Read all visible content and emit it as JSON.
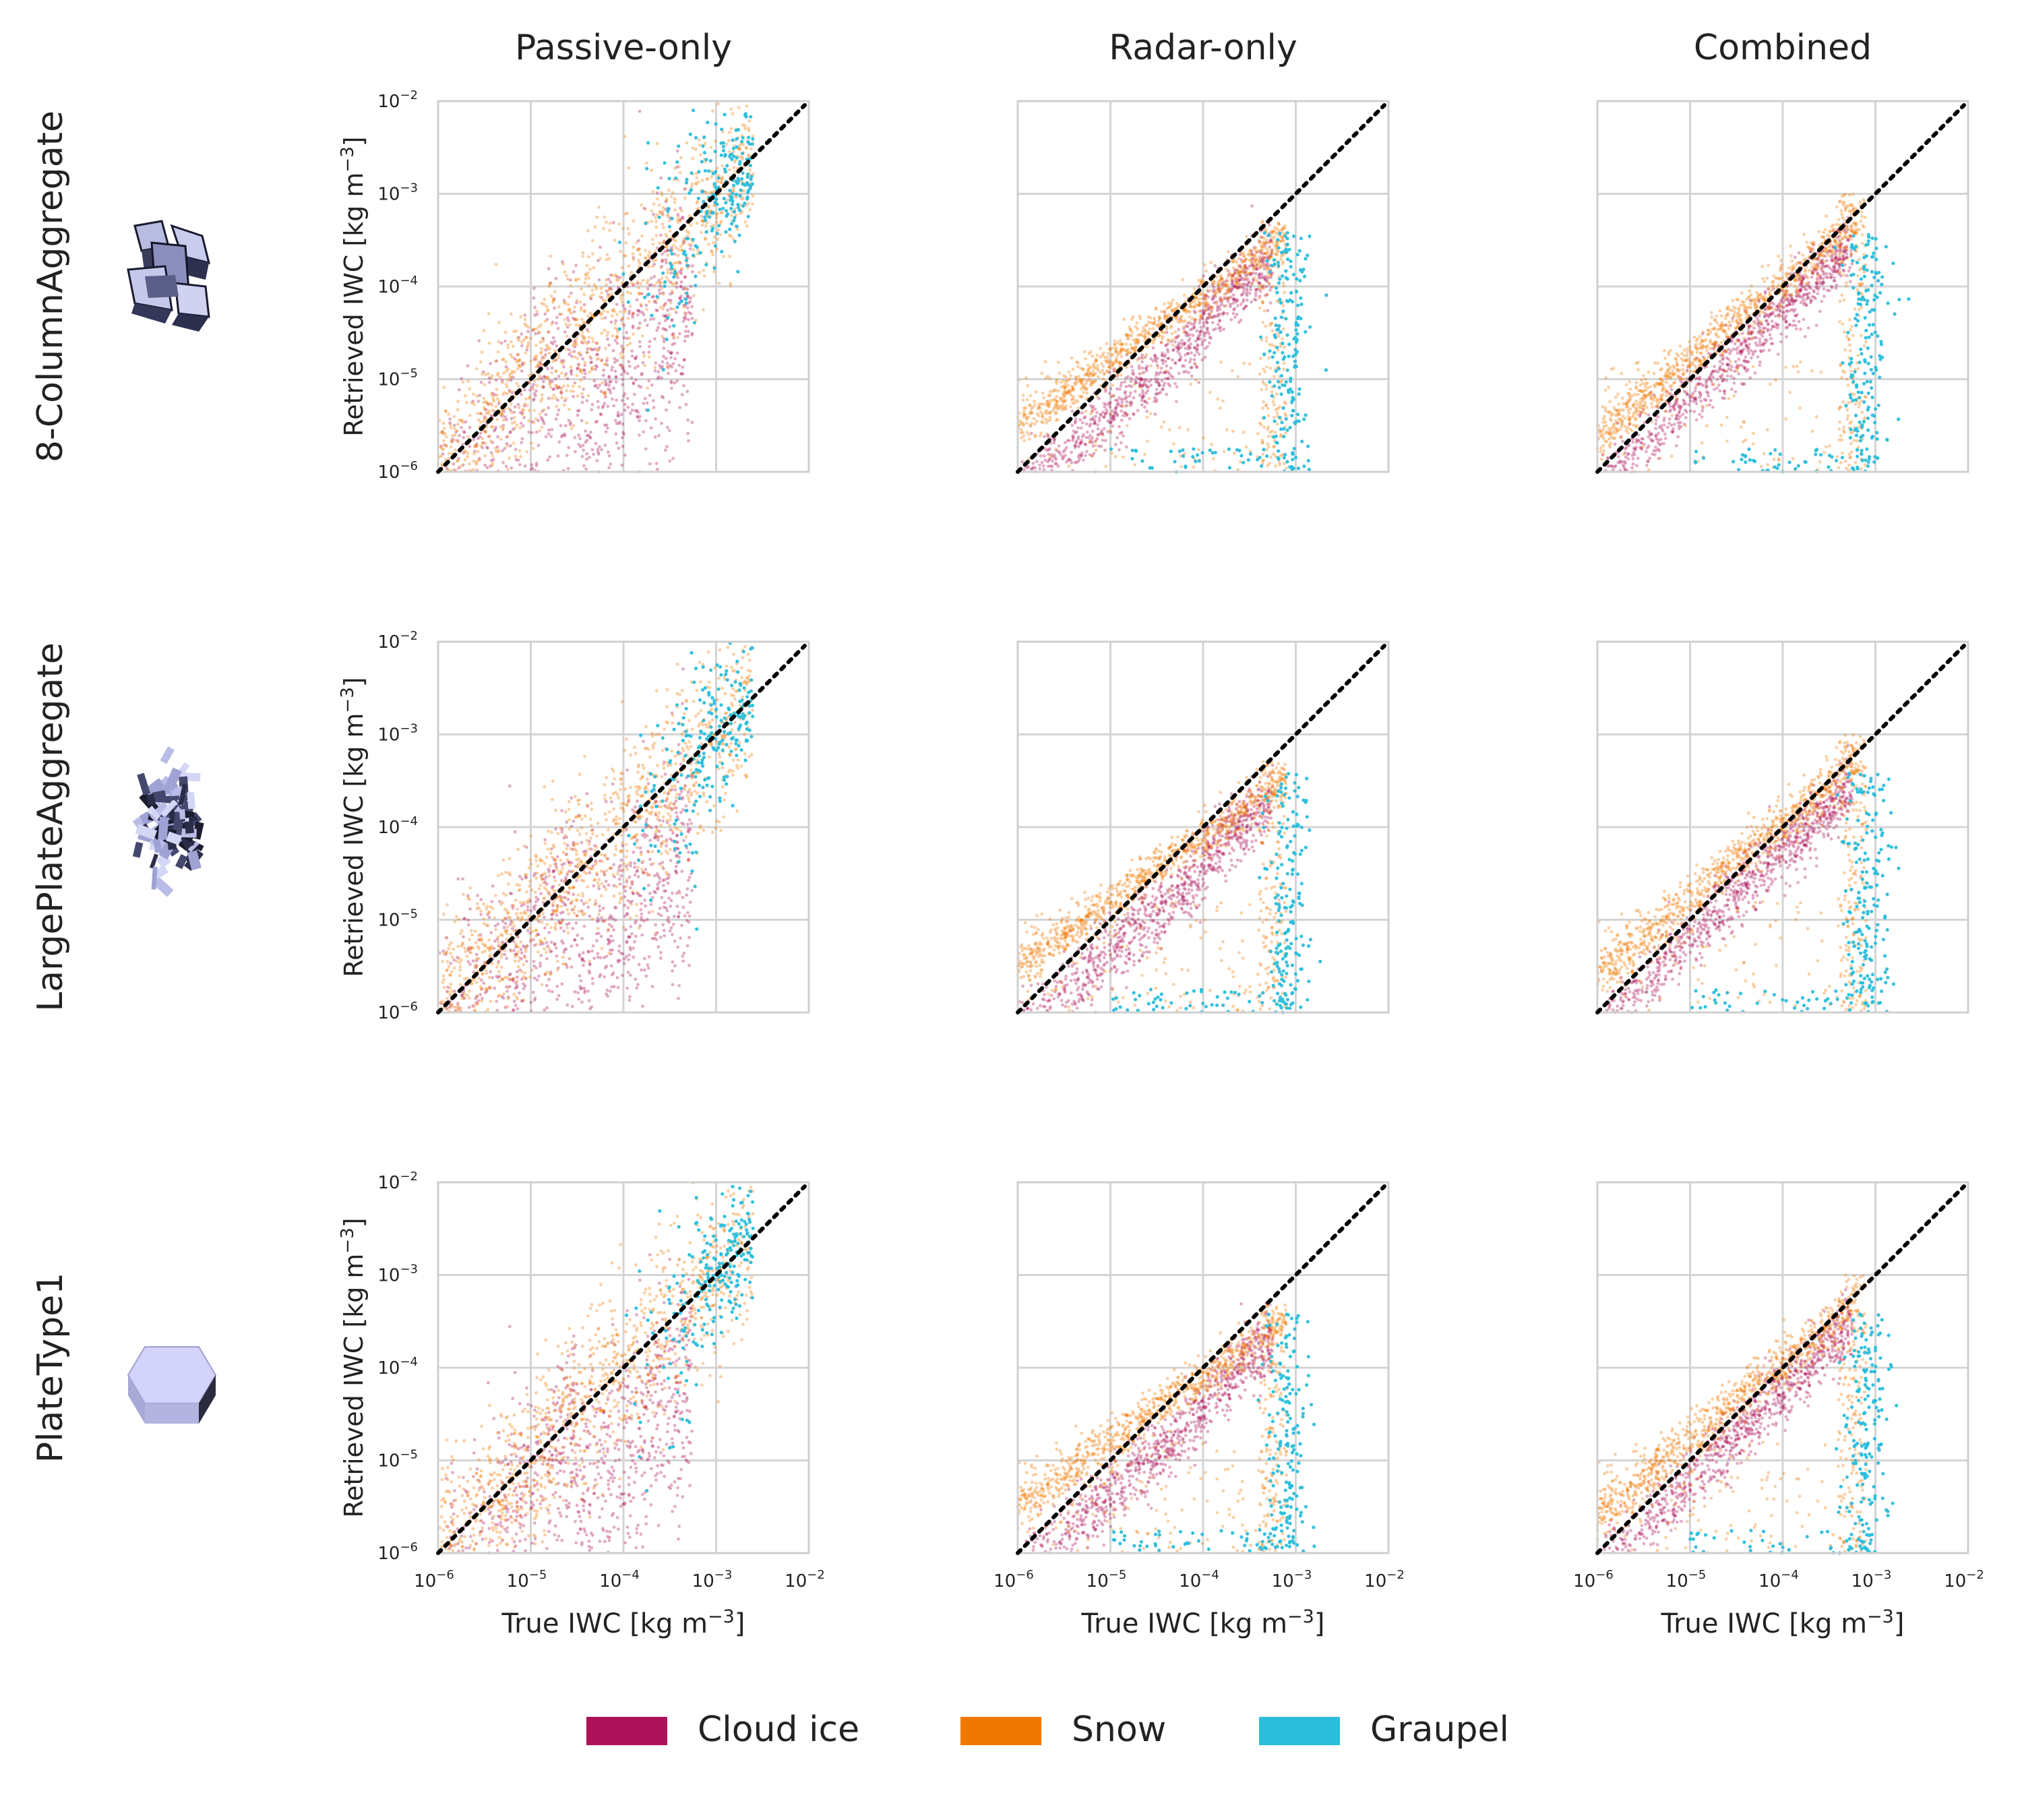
{
  "figure": {
    "columns": [
      "Passive-only",
      "Radar-only",
      "Combined"
    ],
    "rows": [
      "8-ColumnAggregate",
      "LargePlateAggregate",
      "PlateType1"
    ],
    "ylabel": "Retrieved IWC [kg m",
    "xlabel": "True IWC [kg  m",
    "unit_exponent": "−3",
    "unit_close": "]",
    "tick_base": "10",
    "tick_exponents": [
      "−6",
      "−5",
      "−4",
      "−3",
      "−2"
    ],
    "legend": [
      {
        "label": "Cloud ice",
        "color": "#ad1259"
      },
      {
        "label": "Snow",
        "color": "#f07800"
      },
      {
        "label": "Graupel",
        "color": "#2abedb"
      }
    ]
  },
  "chart_data": {
    "type": "scatter",
    "xscale": "log",
    "yscale": "log",
    "xlim": [
      1e-06,
      0.01
    ],
    "ylim": [
      1e-06,
      0.01
    ],
    "grid": true,
    "reference_line": "y = x (dotted, black)",
    "legend_position": "bottom-center",
    "series_summary": [
      {
        "name": "Cloud ice",
        "color": "#ad1259",
        "true_iwc_range": [
          1e-06,
          0.0006
        ]
      },
      {
        "name": "Snow",
        "color": "#f07800",
        "true_iwc_range": [
          1e-06,
          0.003
        ]
      },
      {
        "name": "Graupel",
        "color": "#2abedb",
        "true_iwc_range": [
          0.0001,
          0.003
        ]
      }
    ],
    "panels": [
      {
        "row": "8-ColumnAggregate",
        "column": "Passive-only"
      },
      {
        "row": "8-ColumnAggregate",
        "column": "Radar-only"
      },
      {
        "row": "8-ColumnAggregate",
        "column": "Combined"
      },
      {
        "row": "LargePlateAggregate",
        "column": "Passive-only"
      },
      {
        "row": "LargePlateAggregate",
        "column": "Radar-only"
      },
      {
        "row": "LargePlateAggregate",
        "column": "Combined"
      },
      {
        "row": "PlateType1",
        "column": "Passive-only"
      },
      {
        "row": "PlateType1",
        "column": "Radar-only"
      },
      {
        "row": "PlateType1",
        "column": "Combined"
      }
    ]
  }
}
